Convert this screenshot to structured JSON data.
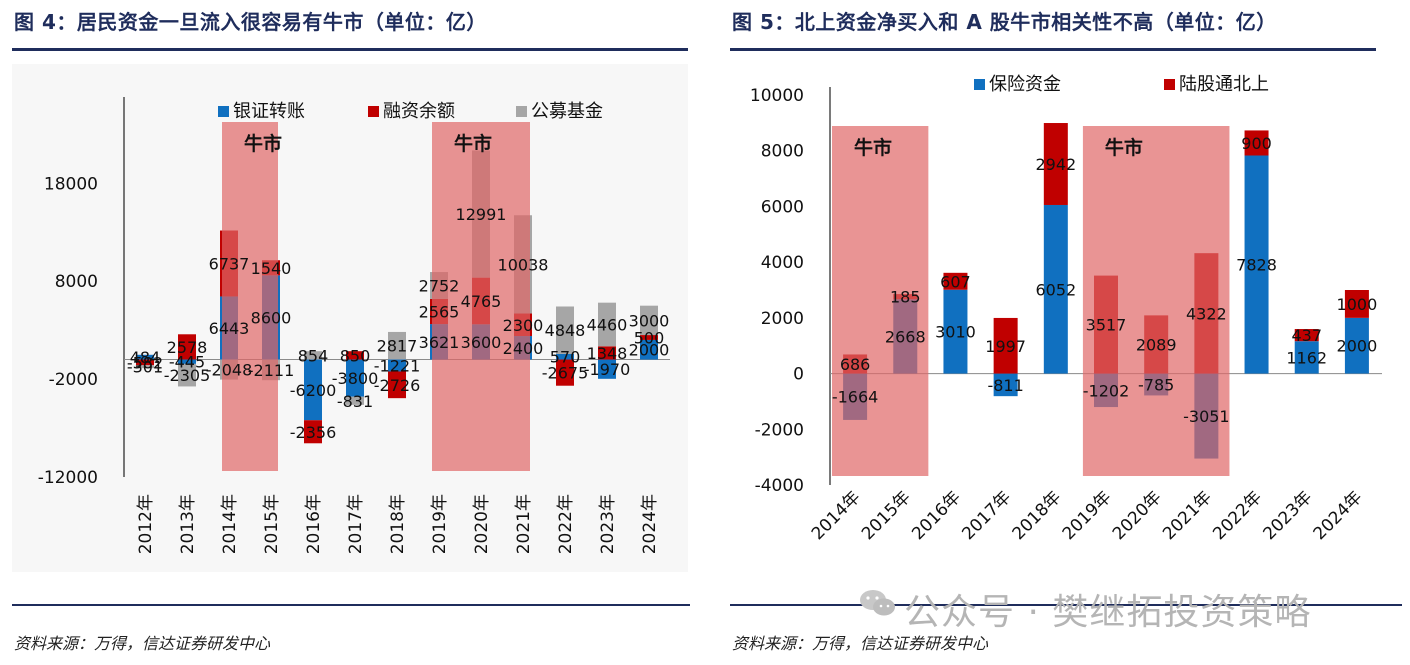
{
  "figures": [
    {
      "title": "图 4：居民资金一旦流入很容易有牛市（单位：亿）",
      "source": "资料来源：万得，信达证券研发中心",
      "bull_label": "牛市",
      "colors": {
        "bank": "#1070c0",
        "margin": "#c00000",
        "fund": "#a6a6a6",
        "bull": "#e06666"
      },
      "chart_data": {
        "type": "bar",
        "stacked": true,
        "categories": [
          "2012年",
          "2013年",
          "2014年",
          "2015年",
          "2016年",
          "2017年",
          "2018年",
          "2019年",
          "2020年",
          "2021年",
          "2022年",
          "2023年",
          "2024年"
        ],
        "series": [
          {
            "name": "银证转账",
            "values": [
              484,
              -445,
              6443,
              8600,
              -6200,
              -3800,
              -1221,
              3621,
              3600,
              2400,
              570,
              -1970,
              2000
            ]
          },
          {
            "name": "融资余额",
            "values": [
              -582,
              2578,
              6737,
              1540,
              -2356,
              850,
              -2726,
              2565,
              4765,
              2300,
              -2675,
              1348,
              500
            ]
          },
          {
            "name": "公募基金",
            "values": [
              -301,
              -2305,
              -2048,
              -2111,
              854,
              -831,
              2817,
              2752,
              12991,
              10038,
              4848,
              4460,
              3000
            ]
          }
        ],
        "yticks": [
          18000,
          8000,
          -2000,
          -12000
        ],
        "ylim": [
          -12000,
          26000
        ],
        "bull_periods": [
          [
            2,
            3
          ],
          [
            7,
            9
          ]
        ],
        "legend": "top"
      }
    },
    {
      "title": "图 5：北上资金净买入和 A 股牛市相关性不高（单位：亿）",
      "source": "资料来源：万得，信达证券研发中心",
      "bull_label": "牛市",
      "colors": {
        "insurance": "#1070c0",
        "northbound": "#c00000",
        "bull": "#e06666"
      },
      "chart_data": {
        "type": "bar",
        "stacked": true,
        "categories": [
          "2014年",
          "2015年",
          "2016年",
          "2017年",
          "2018年",
          "2019年",
          "2020年",
          "2021年",
          "2022年",
          "2023年",
          "2024年"
        ],
        "series": [
          {
            "name": "保险资金",
            "values": [
              -1664,
              2668,
              3010,
              -811,
              6052,
              -1202,
              -785,
              -3051,
              7828,
              1162,
              2000
            ]
          },
          {
            "name": "陆股通北上",
            "values": [
              686,
              185,
              607,
              1997,
              2942,
              3517,
              2089,
              4322,
              900,
              437,
              1000
            ]
          }
        ],
        "yticks": [
          10000,
          8000,
          6000,
          4000,
          2000,
          0,
          -2000,
          -4000
        ],
        "ylim": [
          -4000,
          10000
        ],
        "bull_periods": [
          [
            0,
            1
          ],
          [
            5,
            7
          ]
        ],
        "legend": "top"
      }
    }
  ],
  "watermark": "公众号 · 樊继拓投资策略"
}
